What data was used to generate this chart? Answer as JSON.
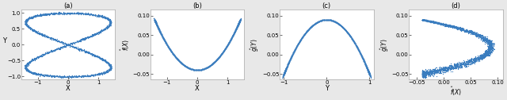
{
  "n_points": 3000,
  "color": "#3a7dbf",
  "dot_size": 0.8,
  "fig_bg": "#e8e8e8",
  "panel_bg": "#ffffff",
  "titles": [
    "(a)",
    "(b)",
    "(c)",
    "(d)"
  ],
  "xlabels": [
    "X",
    "X",
    "Y",
    "$\\hat{f}(X)$"
  ],
  "ylabels": [
    "Y",
    "$\\hat{f}(X)$",
    "$\\hat{g}(Y)$",
    "$\\hat{g}(Y)$"
  ],
  "xlims_a": [
    -1.55,
    1.55
  ],
  "xlims_b": [
    -1.55,
    1.55
  ],
  "xlims_c": [
    -1.1,
    1.1
  ],
  "xlims_d": [
    -0.065,
    0.11
  ],
  "ylims_a": [
    -1.1,
    1.1
  ],
  "ylims_bcd": [
    -0.065,
    0.115
  ],
  "xticks_a": [
    -1,
    0,
    1
  ],
  "xticks_b": [
    -1,
    0,
    1
  ],
  "xticks_c": [
    -1,
    0,
    1
  ],
  "xticks_d": [
    -0.05,
    0,
    0.05,
    0.1
  ],
  "yticks_a": [
    -1,
    -0.5,
    0,
    0.5,
    1
  ],
  "yticks_bcd": [
    -0.05,
    0,
    0.05,
    0.1
  ],
  "noise_scale": 0.015,
  "f_a": 0.065,
  "f_b": -0.04,
  "g_a": -0.14,
  "g_b": 0.09
}
